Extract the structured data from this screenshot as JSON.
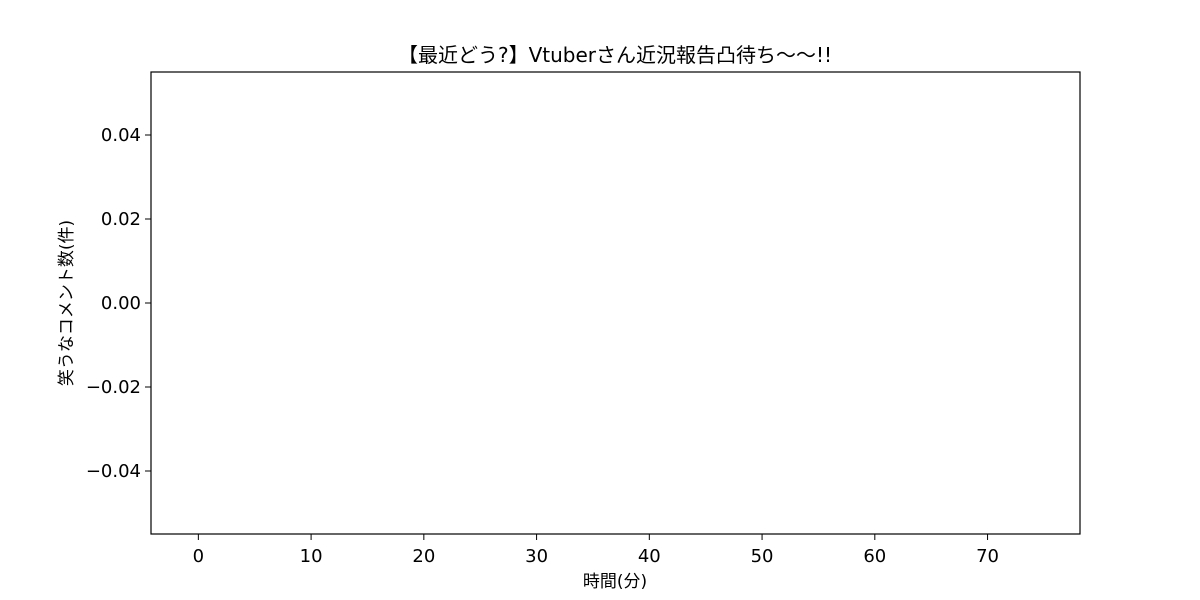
{
  "chart_data": {
    "type": "line",
    "title": "【最近どう?】Vtuberさん近況報告凸待ち〜〜!!",
    "xlabel": "時間(分)",
    "ylabel": "笑うなコメント数(件)",
    "xlim": [
      -4.2,
      78.2
    ],
    "ylim": [
      -0.055,
      0.055
    ],
    "xticks": [
      0,
      10,
      20,
      30,
      40,
      50,
      60,
      70
    ],
    "xtick_labels": [
      "0",
      "10",
      "20",
      "30",
      "40",
      "50",
      "60",
      "70"
    ],
    "yticks": [
      0.04,
      0.02,
      0.0,
      -0.02,
      -0.04
    ],
    "ytick_labels": [
      "0.04",
      "0.02",
      "0.00",
      "−0.02",
      "−0.04"
    ],
    "grid": false,
    "series": [
      {
        "name": "笑うなコメント数",
        "x": [],
        "values": []
      }
    ]
  }
}
